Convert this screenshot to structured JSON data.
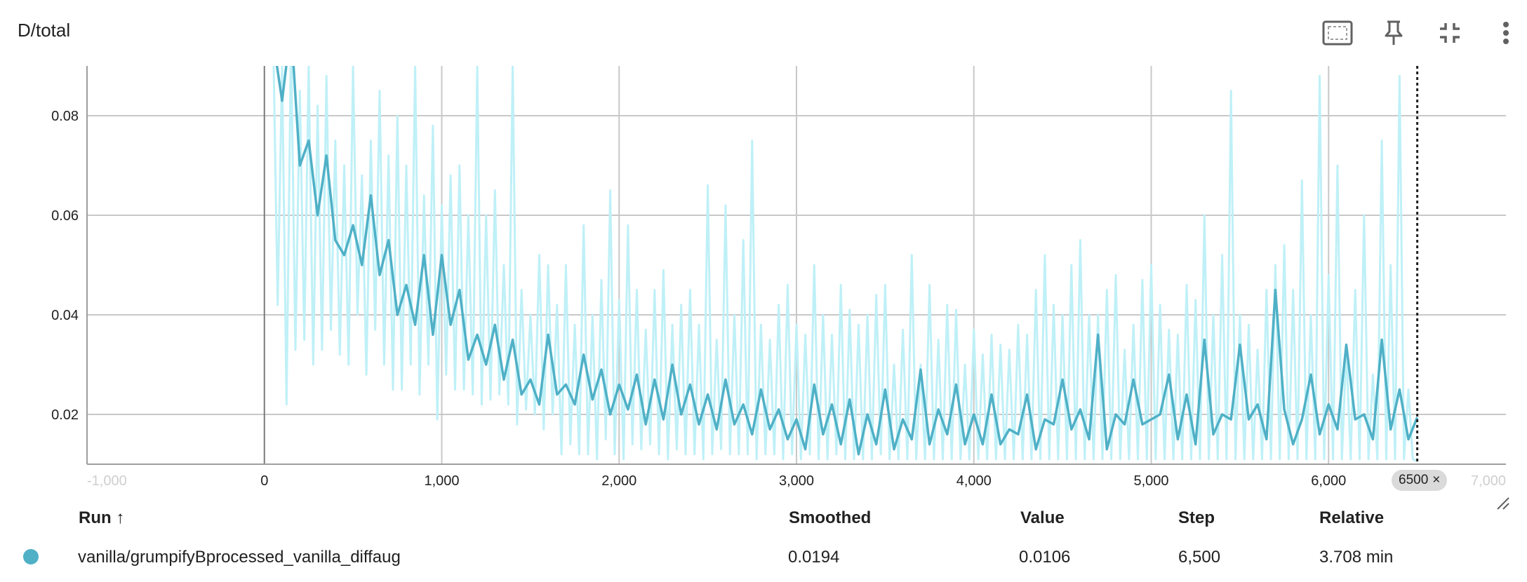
{
  "card": {
    "title": "D/total"
  },
  "toolbar": [
    {
      "name": "fit-domain-icon",
      "label": "Fit domain to data"
    },
    {
      "name": "pin-icon",
      "label": "Pin card"
    },
    {
      "name": "collapse-icon",
      "label": "Collapse card"
    },
    {
      "name": "more-vert-icon",
      "label": "More"
    }
  ],
  "colors": {
    "smoothed": "#4fb0c6",
    "raw": "#bff0f7",
    "grid": "#c8c8c8",
    "zero_axis": "#7a7a7a"
  },
  "chart_data": {
    "type": "line",
    "title": "D/total",
    "xlabel": "",
    "ylabel": "",
    "xlim": [
      -1000,
      7000
    ],
    "ylim": [
      0.01,
      0.09
    ],
    "x_ticks": [
      -1000,
      0,
      1000,
      2000,
      3000,
      4000,
      5000,
      6000,
      7000
    ],
    "x_tick_labels": [
      "-1,000",
      "0",
      "1,000",
      "2,000",
      "3,000",
      "4,000",
      "5,000",
      "6,000",
      "7,000"
    ],
    "y_ticks": [
      0.02,
      0.04,
      0.06,
      0.08
    ],
    "y_tick_labels": [
      "0.02",
      "0.04",
      "0.06",
      "0.08"
    ],
    "grid": true,
    "cursor_step": 6500,
    "cursor_label": "6500",
    "series": [
      {
        "name": "vanilla/grumpifyBprocessed_vanilla_diffaug",
        "smoothed_x": [
          50,
          100,
          150,
          200,
          250,
          300,
          350,
          400,
          450,
          500,
          550,
          600,
          650,
          700,
          750,
          800,
          850,
          900,
          950,
          1000,
          1050,
          1100,
          1150,
          1200,
          1250,
          1300,
          1350,
          1400,
          1450,
          1500,
          1550,
          1600,
          1650,
          1700,
          1750,
          1800,
          1850,
          1900,
          1950,
          2000,
          2050,
          2100,
          2150,
          2200,
          2250,
          2300,
          2350,
          2400,
          2450,
          2500,
          2550,
          2600,
          2650,
          2700,
          2750,
          2800,
          2850,
          2900,
          2950,
          3000,
          3050,
          3100,
          3150,
          3200,
          3250,
          3300,
          3350,
          3400,
          3450,
          3500,
          3550,
          3600,
          3650,
          3700,
          3750,
          3800,
          3850,
          3900,
          3950,
          4000,
          4050,
          4100,
          4150,
          4200,
          4250,
          4300,
          4350,
          4400,
          4450,
          4500,
          4550,
          4600,
          4650,
          4700,
          4750,
          4800,
          4850,
          4900,
          4950,
          5000,
          5050,
          5100,
          5150,
          5200,
          5250,
          5300,
          5350,
          5400,
          5450,
          5500,
          5550,
          5600,
          5650,
          5700,
          5750,
          5800,
          5850,
          5900,
          5950,
          6000,
          6050,
          6100,
          6150,
          6200,
          6250,
          6300,
          6350,
          6400,
          6450,
          6500
        ],
        "smoothed_y": [
          0.095,
          0.083,
          0.098,
          0.07,
          0.075,
          0.06,
          0.072,
          0.055,
          0.052,
          0.058,
          0.05,
          0.064,
          0.048,
          0.055,
          0.04,
          0.046,
          0.038,
          0.052,
          0.036,
          0.052,
          0.038,
          0.045,
          0.031,
          0.036,
          0.03,
          0.038,
          0.027,
          0.035,
          0.024,
          0.027,
          0.022,
          0.036,
          0.024,
          0.026,
          0.022,
          0.032,
          0.023,
          0.029,
          0.02,
          0.026,
          0.021,
          0.028,
          0.018,
          0.027,
          0.019,
          0.03,
          0.02,
          0.026,
          0.018,
          0.024,
          0.017,
          0.027,
          0.018,
          0.022,
          0.016,
          0.025,
          0.017,
          0.021,
          0.015,
          0.019,
          0.013,
          0.026,
          0.016,
          0.022,
          0.014,
          0.023,
          0.012,
          0.02,
          0.014,
          0.025,
          0.013,
          0.019,
          0.015,
          0.029,
          0.014,
          0.021,
          0.016,
          0.026,
          0.014,
          0.02,
          0.014,
          0.024,
          0.014,
          0.017,
          0.016,
          0.024,
          0.013,
          0.019,
          0.018,
          0.027,
          0.017,
          0.021,
          0.015,
          0.036,
          0.013,
          0.02,
          0.018,
          0.027,
          0.018,
          0.019,
          0.02,
          0.028,
          0.015,
          0.024,
          0.014,
          0.035,
          0.016,
          0.02,
          0.019,
          0.034,
          0.019,
          0.022,
          0.015,
          0.045,
          0.021,
          0.014,
          0.019,
          0.028,
          0.016,
          0.022,
          0.017,
          0.034,
          0.019,
          0.02,
          0.015,
          0.035,
          0.017,
          0.025,
          0.015,
          0.0194
        ],
        "raw_x": [
          50,
          75,
          100,
          125,
          150,
          175,
          200,
          225,
          250,
          275,
          300,
          325,
          350,
          375,
          400,
          425,
          450,
          475,
          500,
          525,
          550,
          575,
          600,
          625,
          650,
          675,
          700,
          725,
          750,
          775,
          800,
          825,
          850,
          875,
          900,
          925,
          950,
          975,
          1000,
          1025,
          1050,
          1075,
          1100,
          1125,
          1150,
          1175,
          1200,
          1225,
          1250,
          1275,
          1300,
          1325,
          1350,
          1375,
          1400,
          1425,
          1450,
          1475,
          1500,
          1525,
          1550,
          1575,
          1600,
          1625,
          1650,
          1675,
          1700,
          1725,
          1750,
          1775,
          1800,
          1825,
          1850,
          1875,
          1900,
          1925,
          1950,
          1975,
          2000,
          2025,
          2050,
          2075,
          2100,
          2125,
          2150,
          2175,
          2200,
          2225,
          2250,
          2275,
          2300,
          2325,
          2350,
          2375,
          2400,
          2425,
          2450,
          2475,
          2500,
          2525,
          2550,
          2575,
          2600,
          2625,
          2650,
          2675,
          2700,
          2725,
          2750,
          2775,
          2800,
          2825,
          2850,
          2875,
          2900,
          2925,
          2950,
          2975,
          3000,
          3025,
          3050,
          3075,
          3100,
          3125,
          3150,
          3175,
          3200,
          3225,
          3250,
          3275,
          3300,
          3325,
          3350,
          3375,
          3400,
          3425,
          3450,
          3475,
          3500,
          3525,
          3550,
          3575,
          3600,
          3625,
          3650,
          3675,
          3700,
          3725,
          3750,
          3775,
          3800,
          3825,
          3850,
          3875,
          3900,
          3925,
          3950,
          3975,
          4000,
          4025,
          4050,
          4075,
          4100,
          4125,
          4150,
          4175,
          4200,
          4225,
          4250,
          4275,
          4300,
          4325,
          4350,
          4375,
          4400,
          4425,
          4450,
          4475,
          4500,
          4525,
          4550,
          4575,
          4600,
          4625,
          4650,
          4675,
          4700,
          4725,
          4750,
          4775,
          4800,
          4825,
          4850,
          4875,
          4900,
          4925,
          4950,
          4975,
          5000,
          5025,
          5050,
          5075,
          5100,
          5125,
          5150,
          5175,
          5200,
          5225,
          5250,
          5275,
          5300,
          5325,
          5350,
          5375,
          5400,
          5425,
          5450,
          5475,
          5500,
          5525,
          5550,
          5575,
          5600,
          5625,
          5650,
          5675,
          5700,
          5725,
          5750,
          5775,
          5800,
          5825,
          5850,
          5875,
          5900,
          5925,
          5950,
          5975,
          6000,
          6025,
          6050,
          6075,
          6100,
          6125,
          6150,
          6175,
          6200,
          6225,
          6250,
          6275,
          6300,
          6325,
          6350,
          6375,
          6400,
          6425,
          6450,
          6475,
          6500
        ],
        "raw_y": [
          0.095,
          0.042,
          0.09,
          0.022,
          0.095,
          0.033,
          0.085,
          0.035,
          0.09,
          0.03,
          0.082,
          0.033,
          0.088,
          0.037,
          0.075,
          0.032,
          0.07,
          0.03,
          0.09,
          0.04,
          0.068,
          0.028,
          0.075,
          0.037,
          0.085,
          0.03,
          0.072,
          0.025,
          0.08,
          0.025,
          0.07,
          0.03,
          0.09,
          0.024,
          0.064,
          0.03,
          0.078,
          0.019,
          0.062,
          0.028,
          0.068,
          0.025,
          0.07,
          0.025,
          0.06,
          0.024,
          0.09,
          0.022,
          0.06,
          0.023,
          0.065,
          0.024,
          0.05,
          0.022,
          0.09,
          0.018,
          0.045,
          0.021,
          0.04,
          0.02,
          0.052,
          0.017,
          0.05,
          0.02,
          0.042,
          0.012,
          0.05,
          0.014,
          0.038,
          0.012,
          0.058,
          0.012,
          0.04,
          0.011,
          0.047,
          0.015,
          0.065,
          0.012,
          0.043,
          0.011,
          0.058,
          0.014,
          0.045,
          0.013,
          0.037,
          0.014,
          0.045,
          0.012,
          0.049,
          0.011,
          0.038,
          0.013,
          0.042,
          0.012,
          0.045,
          0.012,
          0.038,
          0.011,
          0.066,
          0.012,
          0.035,
          0.013,
          0.062,
          0.012,
          0.04,
          0.012,
          0.055,
          0.012,
          0.075,
          0.011,
          0.038,
          0.012,
          0.035,
          0.012,
          0.042,
          0.011,
          0.046,
          0.012,
          0.038,
          0.011,
          0.036,
          0.012,
          0.05,
          0.011,
          0.04,
          0.011,
          0.036,
          0.012,
          0.046,
          0.011,
          0.041,
          0.011,
          0.038,
          0.011,
          0.04,
          0.011,
          0.044,
          0.012,
          0.046,
          0.011,
          0.03,
          0.011,
          0.037,
          0.011,
          0.052,
          0.011,
          0.03,
          0.011,
          0.046,
          0.011,
          0.035,
          0.011,
          0.042,
          0.011,
          0.041,
          0.011,
          0.03,
          0.011,
          0.037,
          0.011,
          0.032,
          0.011,
          0.036,
          0.011,
          0.034,
          0.011,
          0.033,
          0.011,
          0.038,
          0.011,
          0.036,
          0.011,
          0.045,
          0.011,
          0.052,
          0.011,
          0.042,
          0.011,
          0.04,
          0.011,
          0.05,
          0.011,
          0.055,
          0.011,
          0.04,
          0.011,
          0.04,
          0.011,
          0.045,
          0.011,
          0.048,
          0.011,
          0.033,
          0.011,
          0.038,
          0.011,
          0.047,
          0.011,
          0.05,
          0.011,
          0.042,
          0.011,
          0.037,
          0.011,
          0.036,
          0.011,
          0.046,
          0.011,
          0.043,
          0.011,
          0.06,
          0.011,
          0.04,
          0.011,
          0.052,
          0.011,
          0.085,
          0.011,
          0.04,
          0.011,
          0.038,
          0.011,
          0.033,
          0.011,
          0.045,
          0.011,
          0.05,
          0.011,
          0.054,
          0.011,
          0.045,
          0.011,
          0.067,
          0.011,
          0.04,
          0.011,
          0.088,
          0.011,
          0.048,
          0.011,
          0.07,
          0.011,
          0.033,
          0.011,
          0.045,
          0.011,
          0.06,
          0.011,
          0.028,
          0.011,
          0.075,
          0.011,
          0.05,
          0.011,
          0.088,
          0.011,
          0.025,
          0.011,
          0.0106
        ]
      }
    ]
  },
  "table": {
    "headers": {
      "run": "Run ↑",
      "smoothed": "Smoothed",
      "value": "Value",
      "step": "Step",
      "relative": "Relative"
    },
    "rows": [
      {
        "run": "vanilla/grumpifyBprocessed_vanilla_diffaug",
        "smoothed": "0.0194",
        "value": "0.0106",
        "step": "6,500",
        "relative": "3.708 min",
        "color": "#4fb0c6"
      }
    ]
  }
}
